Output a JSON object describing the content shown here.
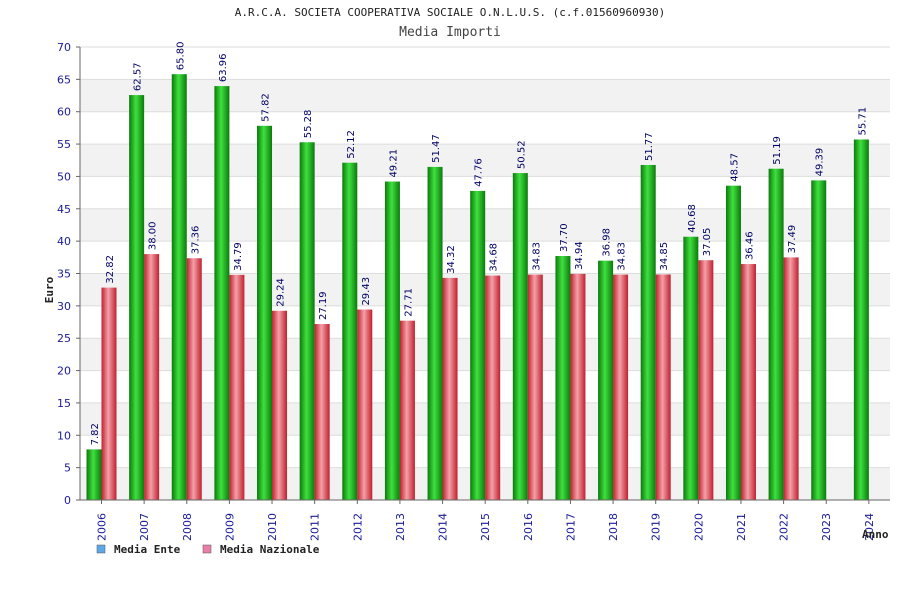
{
  "chart_data": {
    "type": "bar",
    "title": "A.R.C.A. SOCIETA COOPERATIVA SOCIALE O.N.L.U.S. (c.f.01560960930)",
    "subtitle": "Media Importi",
    "xlabel": "Anno",
    "ylabel": "Euro",
    "ylim": [
      0,
      70
    ],
    "ytick_step": 5,
    "categories": [
      "2006",
      "2007",
      "2008",
      "2009",
      "2010",
      "2011",
      "2012",
      "2013",
      "2014",
      "2015",
      "2016",
      "2017",
      "2018",
      "2019",
      "2020",
      "2021",
      "2022",
      "2023",
      "2024"
    ],
    "series": [
      {
        "name": "Media Ente",
        "color": "#1aa81a",
        "values": [
          7.82,
          62.57,
          65.8,
          63.96,
          57.82,
          55.28,
          52.12,
          49.21,
          51.47,
          47.76,
          50.52,
          37.7,
          36.98,
          51.77,
          40.68,
          48.57,
          51.19,
          49.39,
          55.71
        ],
        "labels": [
          "7.82",
          "62.57",
          "65.80",
          "63.96",
          "57.82",
          "55.28",
          "52.12",
          "49.21",
          "51.47",
          "47.76",
          "50.52",
          "37.70",
          "36.98",
          "51.77",
          "40.68",
          "48.57",
          "51.19",
          "49.39",
          "55.71"
        ]
      },
      {
        "name": "Media Nazionale",
        "color": "#e02a3a",
        "values": [
          32.82,
          38.0,
          37.36,
          34.79,
          29.24,
          27.19,
          29.43,
          27.71,
          34.32,
          34.68,
          34.83,
          34.94,
          34.83,
          34.85,
          37.05,
          36.46,
          37.49,
          null,
          null
        ],
        "labels": [
          "32.82",
          "38.00",
          "37.36",
          "34.79",
          "29.24",
          "27.19",
          "29.43",
          "27.71",
          "34.32",
          "34.68",
          "34.83",
          "34.94",
          "34.83",
          "34.85",
          "37.05",
          "36.46",
          "37.49",
          "",
          ""
        ]
      }
    ],
    "legend": [
      {
        "label": "Media Ente",
        "color": "#5fa8e8"
      },
      {
        "label": "Media Nazionale",
        "color": "#e87fa8"
      }
    ],
    "legend_position": "bottom-left",
    "grid": true
  }
}
